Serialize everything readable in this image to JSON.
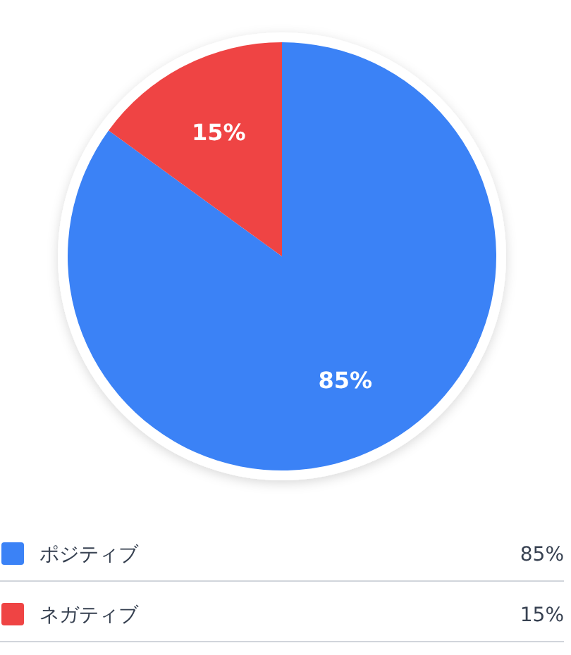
{
  "chart_data": {
    "type": "pie",
    "categories": [
      "ポジティブ",
      "ネガティブ"
    ],
    "values": [
      85,
      15
    ],
    "colors": [
      "#3b82f6",
      "#ef4444"
    ],
    "value_labels": [
      "85%",
      "15%"
    ],
    "legend": "bottom"
  }
}
